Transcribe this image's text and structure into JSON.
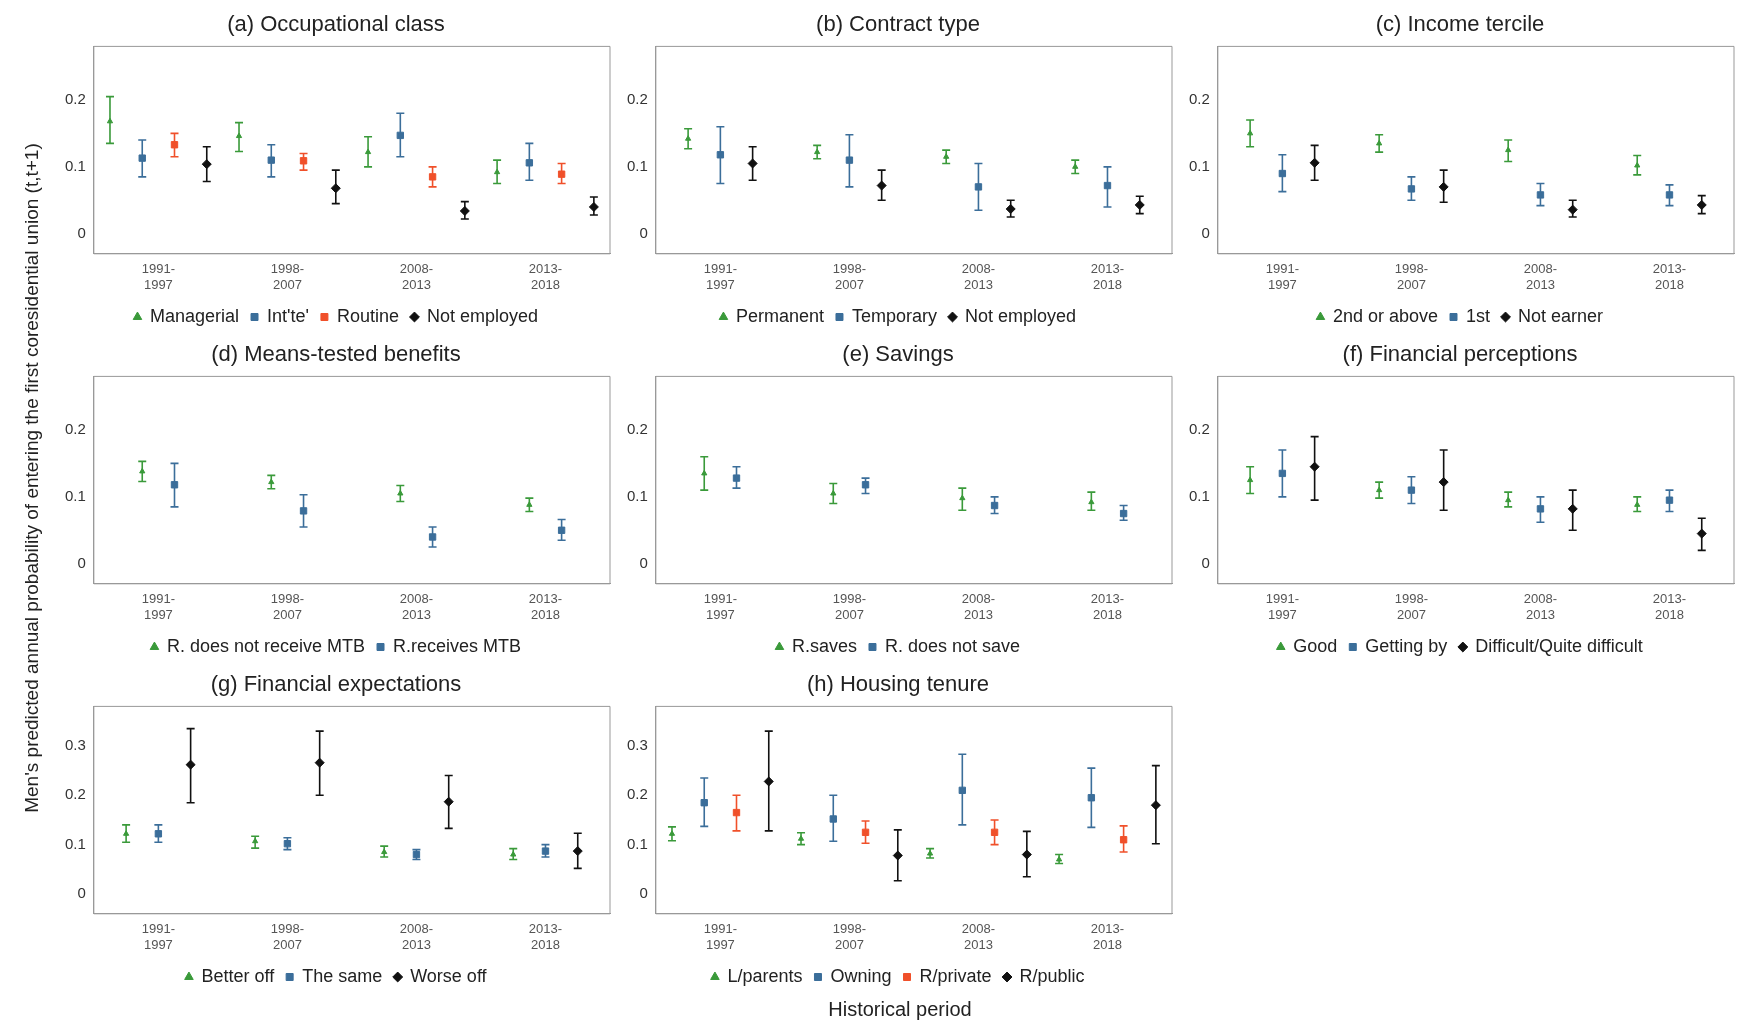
{
  "chart_data": [
    {
      "type": "scatter",
      "title": "(a) Occupational class",
      "ylabel": "Men's predicted annual probability of entering the first coresidential union (t,t+1)",
      "categories": [
        "1991-1997",
        "1998-2007",
        "2008-2013",
        "2013-2018"
      ],
      "ylim": [
        -0.03,
        0.28
      ],
      "yticks": [
        0,
        0.1,
        0.2
      ],
      "grid": false,
      "legend": "bottom",
      "series": [
        {
          "name": "Managerial",
          "color": "#3a9a3a",
          "marker": "triangle",
          "values": [
            0.168,
            0.146,
            0.122,
            0.092
          ],
          "errors": [
            [
              0.135,
              0.205
            ],
            [
              0.123,
              0.166
            ],
            [
              0.1,
              0.145
            ],
            [
              0.075,
              0.11
            ]
          ]
        },
        {
          "name": "Int'te'",
          "color": "#3b6e9a",
          "marker": "square",
          "values": [
            0.113,
            0.11,
            0.147,
            0.106
          ],
          "errors": [
            [
              0.085,
              0.14
            ],
            [
              0.085,
              0.133
            ],
            [
              0.115,
              0.18
            ],
            [
              0.08,
              0.135
            ]
          ]
        },
        {
          "name": "Routine",
          "color": "#f0502a",
          "marker": "square",
          "values": [
            0.133,
            0.109,
            0.085,
            0.089
          ],
          "errors": [
            [
              0.115,
              0.15
            ],
            [
              0.095,
              0.12
            ],
            [
              0.07,
              0.1
            ],
            [
              0.075,
              0.105
            ]
          ]
        },
        {
          "name": "Not employed",
          "color": "#111111",
          "marker": "diamond",
          "values": [
            0.104,
            0.068,
            0.034,
            0.04
          ],
          "errors": [
            [
              0.078,
              0.13
            ],
            [
              0.045,
              0.095
            ],
            [
              0.022,
              0.048
            ],
            [
              0.028,
              0.055
            ]
          ]
        }
      ]
    },
    {
      "type": "scatter",
      "title": "(b) Contract type",
      "categories": [
        "1991-1997",
        "1998-2007",
        "2008-2013",
        "2013-2018"
      ],
      "ylim": [
        -0.03,
        0.28
      ],
      "yticks": [
        0,
        0.1,
        0.2
      ],
      "grid": false,
      "legend": "bottom",
      "series": [
        {
          "name": "Permanent",
          "color": "#3a9a3a",
          "marker": "triangle",
          "values": [
            0.142,
            0.122,
            0.115,
            0.1
          ],
          "errors": [
            [
              0.127,
              0.157
            ],
            [
              0.112,
              0.132
            ],
            [
              0.105,
              0.125
            ],
            [
              0.09,
              0.11
            ]
          ]
        },
        {
          "name": "Temporary",
          "color": "#3b6e9a",
          "marker": "square",
          "values": [
            0.118,
            0.11,
            0.07,
            0.072
          ],
          "errors": [
            [
              0.075,
              0.16
            ],
            [
              0.07,
              0.148
            ],
            [
              0.035,
              0.105
            ],
            [
              0.04,
              0.1
            ]
          ]
        },
        {
          "name": "Not employed",
          "color": "#111111",
          "marker": "diamond",
          "values": [
            0.105,
            0.072,
            0.037,
            0.043
          ],
          "errors": [
            [
              0.08,
              0.13
            ],
            [
              0.05,
              0.095
            ],
            [
              0.025,
              0.05
            ],
            [
              0.03,
              0.056
            ]
          ]
        }
      ]
    },
    {
      "type": "scatter",
      "title": "(c) Income tercile",
      "categories": [
        "1991-1997",
        "1998-2007",
        "2008-2013",
        "2013-2018"
      ],
      "ylim": [
        -0.03,
        0.28
      ],
      "yticks": [
        0,
        0.1,
        0.2
      ],
      "grid": false,
      "legend": "bottom",
      "series": [
        {
          "name": "2nd or above",
          "color": "#3a9a3a",
          "marker": "triangle",
          "values": [
            0.15,
            0.135,
            0.125,
            0.102
          ],
          "errors": [
            [
              0.13,
              0.17
            ],
            [
              0.122,
              0.148
            ],
            [
              0.108,
              0.14
            ],
            [
              0.088,
              0.117
            ]
          ]
        },
        {
          "name": "1st",
          "color": "#3b6e9a",
          "marker": "square",
          "values": [
            0.09,
            0.067,
            0.058,
            0.058
          ],
          "errors": [
            [
              0.063,
              0.118
            ],
            [
              0.05,
              0.085
            ],
            [
              0.042,
              0.075
            ],
            [
              0.042,
              0.073
            ]
          ]
        },
        {
          "name": "Not earner",
          "color": "#111111",
          "marker": "diamond",
          "values": [
            0.106,
            0.07,
            0.036,
            0.043
          ],
          "errors": [
            [
              0.08,
              0.132
            ],
            [
              0.047,
              0.095
            ],
            [
              0.025,
              0.05
            ],
            [
              0.03,
              0.057
            ]
          ]
        }
      ]
    },
    {
      "type": "scatter",
      "title": "(d) Means-tested benefits",
      "categories": [
        "1991-1997",
        "1998-2007",
        "2008-2013",
        "2013-2018"
      ],
      "ylim": [
        -0.03,
        0.28
      ],
      "yticks": [
        0,
        0.1,
        0.2
      ],
      "grid": false,
      "legend": "bottom",
      "series": [
        {
          "name": "R. does not receive MTB",
          "color": "#3a9a3a",
          "marker": "triangle",
          "values": [
            0.138,
            0.122,
            0.105,
            0.088
          ],
          "errors": [
            [
              0.123,
              0.153
            ],
            [
              0.112,
              0.132
            ],
            [
              0.093,
              0.117
            ],
            [
              0.078,
              0.098
            ]
          ]
        },
        {
          "name": "R.receives MTB",
          "color": "#3b6e9a",
          "marker": "square",
          "values": [
            0.118,
            0.079,
            0.04,
            0.05
          ],
          "errors": [
            [
              0.085,
              0.15
            ],
            [
              0.055,
              0.103
            ],
            [
              0.025,
              0.055
            ],
            [
              0.035,
              0.066
            ]
          ]
        }
      ]
    },
    {
      "type": "scatter",
      "title": "(e) Savings",
      "categories": [
        "1991-1997",
        "1998-2007",
        "2008-2013",
        "2013-2018"
      ],
      "ylim": [
        -0.03,
        0.28
      ],
      "yticks": [
        0,
        0.1,
        0.2
      ],
      "grid": false,
      "legend": "bottom",
      "series": [
        {
          "name": "R.saves",
          "color": "#3a9a3a",
          "marker": "triangle",
          "values": [
            0.135,
            0.105,
            0.098,
            0.092
          ],
          "errors": [
            [
              0.11,
              0.16
            ],
            [
              0.09,
              0.12
            ],
            [
              0.08,
              0.113
            ],
            [
              0.08,
              0.107
            ]
          ]
        },
        {
          "name": "R. does not save",
          "color": "#3b6e9a",
          "marker": "square",
          "values": [
            0.128,
            0.118,
            0.087,
            0.075
          ],
          "errors": [
            [
              0.113,
              0.145
            ],
            [
              0.105,
              0.128
            ],
            [
              0.075,
              0.1
            ],
            [
              0.065,
              0.087
            ]
          ]
        }
      ]
    },
    {
      "type": "scatter",
      "title": "(f) Financial perceptions",
      "categories": [
        "1991-1997",
        "1998-2007",
        "2008-2013",
        "2013-2018"
      ],
      "ylim": [
        -0.03,
        0.28
      ],
      "yticks": [
        0,
        0.1,
        0.2
      ],
      "grid": false,
      "legend": "bottom",
      "series": [
        {
          "name": "Good",
          "color": "#3a9a3a",
          "marker": "triangle",
          "values": [
            0.125,
            0.11,
            0.095,
            0.088
          ],
          "errors": [
            [
              0.105,
              0.145
            ],
            [
              0.098,
              0.122
            ],
            [
              0.085,
              0.107
            ],
            [
              0.078,
              0.1
            ]
          ]
        },
        {
          "name": "Getting by",
          "color": "#3b6e9a",
          "marker": "square",
          "values": [
            0.135,
            0.11,
            0.082,
            0.095
          ],
          "errors": [
            [
              0.1,
              0.17
            ],
            [
              0.09,
              0.13
            ],
            [
              0.062,
              0.1
            ],
            [
              0.078,
              0.11
            ]
          ]
        },
        {
          "name": "Difficult/Quite difficult",
          "color": "#111111",
          "marker": "diamond",
          "values": [
            0.145,
            0.122,
            0.082,
            0.045
          ],
          "errors": [
            [
              0.095,
              0.19
            ],
            [
              0.08,
              0.17
            ],
            [
              0.05,
              0.11
            ],
            [
              0.02,
              0.068
            ]
          ]
        }
      ]
    },
    {
      "type": "scatter",
      "title": "(g) Financial expectations",
      "categories": [
        "1991-1997",
        "1998-2007",
        "2008-2013",
        "2013-2018"
      ],
      "ylim": [
        -0.04,
        0.38
      ],
      "yticks": [
        0,
        0.1,
        0.2,
        0.3
      ],
      "grid": false,
      "legend": "bottom",
      "series": [
        {
          "name": "Better off",
          "color": "#3a9a3a",
          "marker": "triangle",
          "values": [
            0.122,
            0.107,
            0.085,
            0.08
          ],
          "errors": [
            [
              0.105,
              0.14
            ],
            [
              0.093,
              0.117
            ],
            [
              0.075,
              0.097
            ],
            [
              0.07,
              0.092
            ]
          ]
        },
        {
          "name": "The same",
          "color": "#3b6e9a",
          "marker": "square",
          "values": [
            0.122,
            0.102,
            0.08,
            0.087
          ],
          "errors": [
            [
              0.105,
              0.14
            ],
            [
              0.09,
              0.114
            ],
            [
              0.07,
              0.09
            ],
            [
              0.075,
              0.1
            ]
          ]
        },
        {
          "name": "Worse off",
          "color": "#111111",
          "marker": "diamond",
          "values": [
            0.262,
            0.266,
            0.187,
            0.087
          ],
          "errors": [
            [
              0.185,
              0.335
            ],
            [
              0.2,
              0.33
            ],
            [
              0.133,
              0.24
            ],
            [
              0.052,
              0.123
            ]
          ]
        }
      ]
    },
    {
      "type": "scatter",
      "title": "(h) Housing tenure",
      "xlabel": "Historical period",
      "categories": [
        "1991-1997",
        "1998-2007",
        "2008-2013",
        "2013-2018"
      ],
      "ylim": [
        -0.04,
        0.38
      ],
      "yticks": [
        0,
        0.1,
        0.2,
        0.3
      ],
      "grid": false,
      "legend": "bottom",
      "series": [
        {
          "name": "L/parents",
          "color": "#3a9a3a",
          "marker": "triangle",
          "values": [
            0.122,
            0.112,
            0.082,
            0.07
          ],
          "errors": [
            [
              0.108,
              0.136
            ],
            [
              0.1,
              0.124
            ],
            [
              0.073,
              0.092
            ],
            [
              0.062,
              0.08
            ]
          ]
        },
        {
          "name": "Owning",
          "color": "#3b6e9a",
          "marker": "square",
          "values": [
            0.185,
            0.152,
            0.21,
            0.195
          ],
          "errors": [
            [
              0.137,
              0.235
            ],
            [
              0.107,
              0.2
            ],
            [
              0.14,
              0.283
            ],
            [
              0.135,
              0.255
            ]
          ]
        },
        {
          "name": "R/private",
          "color": "#f0502a",
          "marker": "square",
          "values": [
            0.165,
            0.125,
            0.125,
            0.11
          ],
          "errors": [
            [
              0.128,
              0.2
            ],
            [
              0.103,
              0.148
            ],
            [
              0.1,
              0.15
            ],
            [
              0.085,
              0.138
            ]
          ]
        },
        {
          "name": "R/public",
          "color": "#111111",
          "marker": "diamond",
          "values": [
            0.228,
            0.078,
            0.08,
            0.18
          ],
          "errors": [
            [
              0.128,
              0.33
            ],
            [
              0.027,
              0.13
            ],
            [
              0.035,
              0.127
            ],
            [
              0.102,
              0.26
            ]
          ]
        }
      ]
    }
  ]
}
